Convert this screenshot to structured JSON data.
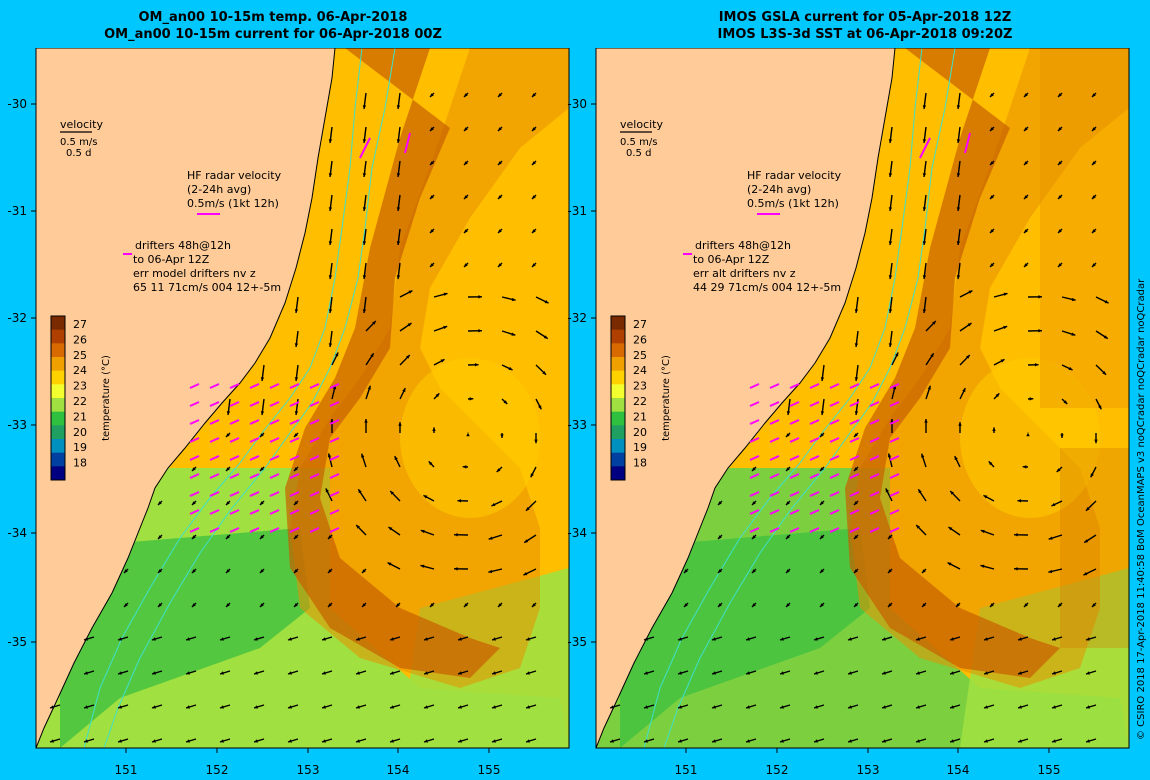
{
  "panels": [
    {
      "title_line1": "OM_an00 10-15m temp. 06-Apr-2018",
      "title_line2": "OM_an00 10-15m current for 06-Apr-2018 00Z",
      "velocity_label": "velocity",
      "velocity_scale_ms": "0.5 m/s",
      "velocity_scale_d": "0.5 d",
      "hf_label1": "HF radar velocity",
      "hf_label2": "(2-24h avg)",
      "hf_label3": "0.5m/s (1kt 12h)",
      "drifter_line1": "drifters 48h@12h",
      "drifter_line2": "to 06-Apr 12Z",
      "drifter_line3": "err model drifters nv z",
      "drifter_line4": "65 11 71cm/s 004 12+-5m",
      "colorbar_title": "temperature (°C)",
      "colorbar_ticks": [
        "27",
        "26",
        "25",
        "24",
        "23",
        "22",
        "21",
        "20",
        "19",
        "18"
      ],
      "lat_labels": [
        "-30",
        "-31",
        "-32",
        "-33",
        "-34",
        "-35"
      ],
      "lon_labels": [
        "151",
        "152",
        "153",
        "154",
        "155"
      ]
    },
    {
      "title_line1": "IMOS GSLA current for 05-Apr-2018 12Z",
      "title_line2": "IMOS L3S-3d SST at 06-Apr-2018 09:20Z",
      "velocity_label": "velocity",
      "velocity_scale_ms": "0.5 m/s",
      "velocity_scale_d": "0.5 d",
      "hf_label1": "HF radar velocity",
      "hf_label2": "(2-24h avg)",
      "hf_label3": "0.5m/s (1kt 12h)",
      "drifter_line1": "drifters 48h@12h",
      "drifter_line2": "to 06-Apr 12Z",
      "drifter_line3": "err alt drifters nv z",
      "drifter_line4": "44 29 71cm/s 004 12+-5m",
      "colorbar_title": "temperature (°C)",
      "colorbar_ticks": [
        "27",
        "26",
        "25",
        "24",
        "23",
        "22",
        "21",
        "20",
        "19",
        "18"
      ],
      "lat_labels": [
        "-30",
        "-31",
        "-32",
        "-33",
        "-34",
        "-35"
      ],
      "lon_labels": [
        "151",
        "152",
        "153",
        "154",
        "155"
      ]
    }
  ],
  "credit": "© CSIRO 2018  17-Apr-2018 11:40:58 BoM OceanMAPS v3 noQCradar noQCradar noQCradar",
  "colors": {
    "background": "#00c8ff",
    "land": "#ffcc99",
    "hf_radar_vectors": "#ff00ff",
    "current_vectors": "#000000",
    "isobath": "#40e0c8",
    "colorbar": [
      "#7a2a00",
      "#b04000",
      "#d86a00",
      "#f0a000",
      "#ffd200",
      "#f4ff30",
      "#a0e040",
      "#30c040",
      "#20a060",
      "#0090c0",
      "#0040a0",
      "#000080"
    ]
  }
}
